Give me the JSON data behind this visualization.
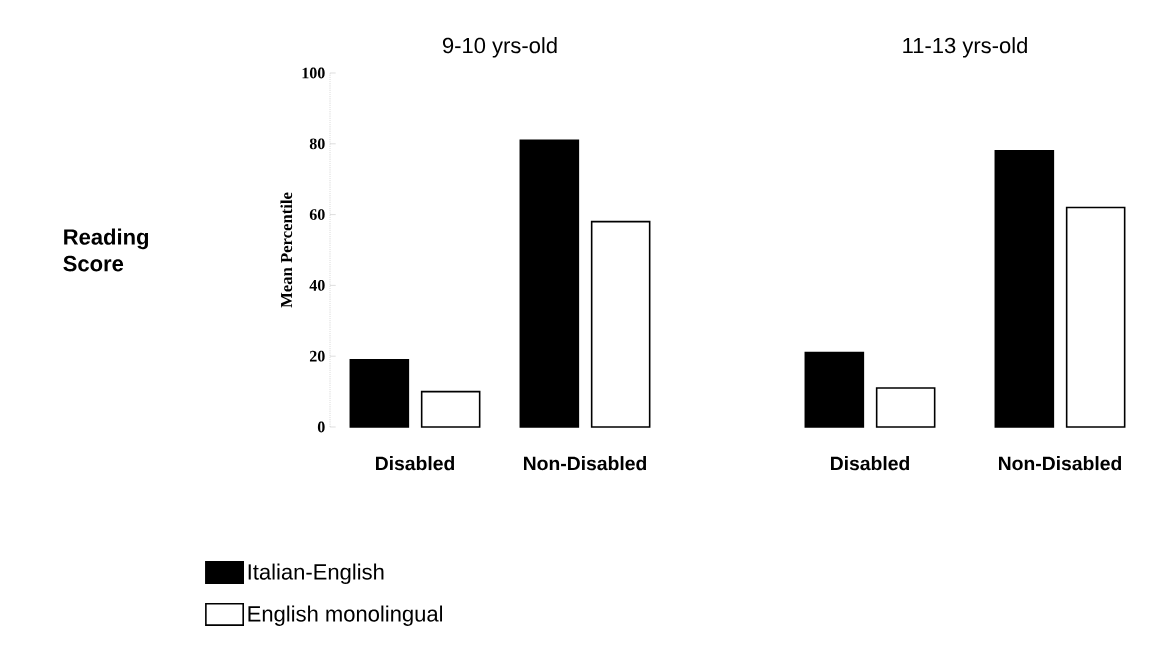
{
  "chart_data": [
    {
      "type": "bar",
      "title": "9-10 yrs-old",
      "ylabel": "Mean Percentile",
      "annotations": [
        "Reading Score"
      ],
      "categories": [
        "Disabled",
        "Non-Disabled"
      ],
      "series": [
        {
          "name": "Italian-English",
          "color": "#000000",
          "values": [
            19,
            81
          ]
        },
        {
          "name": "English monolingual",
          "color": "#ffffff",
          "values": [
            10,
            58
          ]
        }
      ],
      "ylim": [
        0,
        100
      ],
      "yticks": [
        0,
        20,
        40,
        60,
        80,
        100
      ],
      "grid": false,
      "legend": "bottom left"
    },
    {
      "type": "bar",
      "title": "11-13 yrs-old",
      "categories": [
        "Disabled",
        "Non-Disabled"
      ],
      "series": [
        {
          "color": "#000000",
          "values": [
            21,
            78
          ]
        },
        {
          "color": "#ffffff",
          "values": [
            11,
            62
          ]
        }
      ],
      "ylim": [
        0,
        100
      ],
      "yticks": [
        0,
        20,
        40,
        60,
        80,
        100
      ],
      "grid": false,
      "tick_labels": "x"
    }
  ]
}
